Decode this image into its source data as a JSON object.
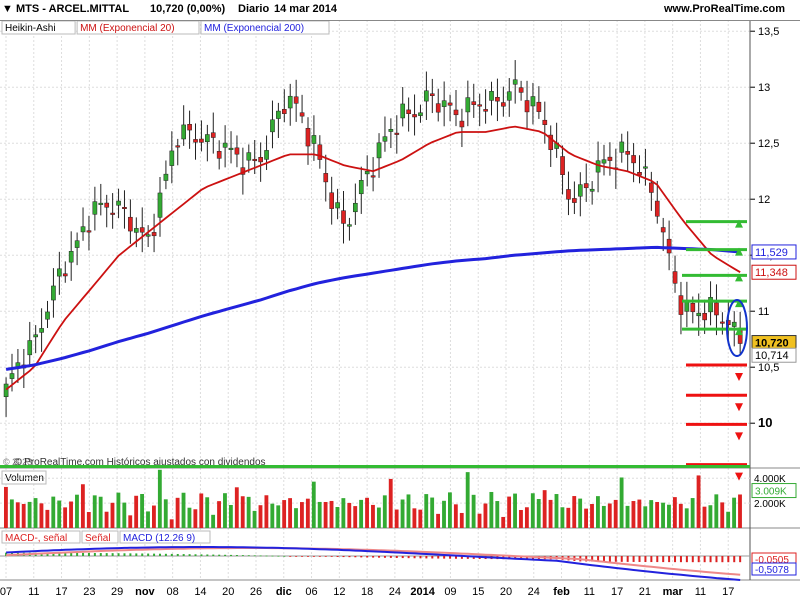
{
  "header": {
    "symbol": "MTS - ARCEL.MITTAL",
    "price_change": "10,720 (0,00%)",
    "period": "Diario",
    "date": "14 mar 2014",
    "site": "www.ProRealTime.com"
  },
  "price_panel": {
    "legend": [
      "Heikin-Ashi",
      "MM (Exponencial 20)",
      "MM (Exponencial 200)"
    ],
    "watermark": "© ProRealTime.com Históricos ajustados con dividendos",
    "watermark_prefix": "© 2023",
    "y_ticks": [
      "13,5",
      "13",
      "12,5",
      "12",
      "11,5",
      "11",
      "10,5",
      "10"
    ],
    "tags": [
      "11,529",
      "11,348",
      "10,720",
      "10,714"
    ]
  },
  "volume_panel": {
    "title": "Volumen",
    "y_ticks": [
      "4.000K",
      "2.000K"
    ],
    "tag": "3.009K"
  },
  "macd_panel": {
    "title_parts": [
      "MACD-, señal",
      "Señal",
      "MACD (12.26 9)"
    ],
    "tags": [
      "-0,0505",
      "-0,5078"
    ]
  },
  "x_axis": [
    "07",
    "11",
    "17",
    "23",
    "29",
    "nov",
    "08",
    "14",
    "20",
    "26",
    "dic",
    "06",
    "12",
    "18",
    "24",
    "2014",
    "09",
    "15",
    "20",
    "24",
    "feb",
    "11",
    "17",
    "21",
    "mar",
    "11",
    "17"
  ],
  "chart_data": [
    {
      "type": "candlestick",
      "title": "MTS - ARCEL.MITTAL",
      "ylim": [
        9.6,
        13.6
      ],
      "series": [
        {
          "name": "Heikin-Ashi",
          "x_labels": [
            "07",
            "11",
            "17",
            "23",
            "29",
            "nov",
            "08",
            "14",
            "20",
            "26",
            "dic",
            "06",
            "12",
            "18",
            "24",
            "2014",
            "09",
            "15",
            "20",
            "24",
            "feb",
            "11",
            "17",
            "21",
            "mar",
            "11",
            "17"
          ],
          "closes": [
            10.3,
            10.6,
            11.5,
            11.9,
            11.8,
            11.7,
            12.6,
            12.4,
            12.5,
            12.4,
            12.8,
            12.5,
            11.8,
            12.2,
            12.8,
            13.0,
            12.6,
            12.9,
            13.1,
            12.6,
            12.0,
            12.4,
            12.3,
            12.0,
            11.1,
            10.9,
            10.72
          ]
        },
        {
          "name": "MM (Exponencial 20)",
          "values": [
            10.3,
            10.5,
            10.9,
            11.2,
            11.5,
            11.7,
            11.9,
            12.1,
            12.2,
            12.3,
            12.4,
            12.4,
            12.3,
            12.25,
            12.35,
            12.5,
            12.6,
            12.6,
            12.65,
            12.6,
            12.4,
            12.3,
            12.25,
            12.15,
            11.8,
            11.5,
            11.348
          ]
        },
        {
          "name": "MM (Exponencial 200)",
          "values": [
            10.48,
            10.52,
            10.58,
            10.65,
            10.73,
            10.8,
            10.88,
            10.96,
            11.03,
            11.1,
            11.18,
            11.25,
            11.3,
            11.34,
            11.38,
            11.42,
            11.45,
            11.47,
            11.5,
            11.52,
            11.54,
            11.55,
            11.56,
            11.57,
            11.56,
            11.55,
            11.529
          ]
        }
      ],
      "levels_green": [
        11.8,
        11.55,
        11.32,
        11.09,
        10.84
      ],
      "levels_red": [
        10.52,
        10.25,
        9.99,
        9.63
      ]
    },
    {
      "type": "bar",
      "title": "Volumen",
      "ylim": [
        0,
        4500
      ],
      "units": "K",
      "last_value": 3009
    },
    {
      "type": "line",
      "title": "MACD (12.26 9)",
      "last_values": {
        "macd": -0.5078,
        "signal": -0.0505
      }
    }
  ],
  "colors": {
    "up": "#33aa33",
    "down": "#dd2222",
    "ema20": "#cc1111",
    "ema200": "#2222dd",
    "grid": "#dddddd",
    "tag_price": "#f0c020"
  }
}
